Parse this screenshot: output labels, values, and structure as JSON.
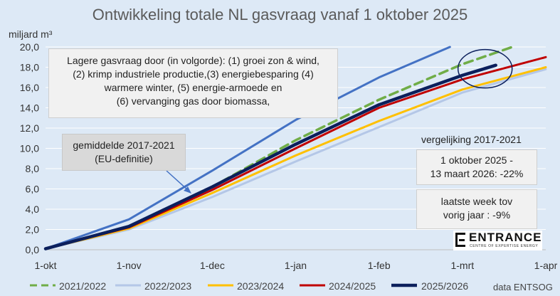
{
  "title": "Ontwikkeling totale NL gasvraag vanaf 1 oktober 2025",
  "source": "data ENTSOG",
  "annotations": {
    "causes": [
      "Lagere gasvraag door (in volgorde): (1) groei zon & wind,",
      "(2) krimp industriele productie,(3) energiebesparing (4)",
      "warmere winter, (5) energie-armoede en",
      "(6) vervanging gas door biomassa,"
    ],
    "average_label": [
      "gemiddelde 2017-2021",
      "(EU-definitie)"
    ],
    "comparison_label": "vergelijking 2017-2021",
    "comparison_box": [
      "1 oktober 2025 -",
      "13 maart 2026: -22%"
    ],
    "week_box": [
      "laatste week tov",
      "vorig jaar : -9%"
    ]
  },
  "logo": {
    "name": "ENTRANCE",
    "sub": "CENTRE OF EXPERTISE ENERGY"
  },
  "colors": {
    "2021/2022": "#70ad47",
    "2022/2023": "#b4c7e7",
    "2023/2024": "#ffc000",
    "2024/2025": "#c00000",
    "2025/2026": "#0b1f5c",
    "average": "#4472c4"
  },
  "chart_data": {
    "type": "line",
    "ylabel": "miljard m³",
    "ylim": [
      0,
      20
    ],
    "yticks": [
      "0,0",
      "2,0",
      "4,0",
      "6,0",
      "8,0",
      "10,0",
      "12,0",
      "14,0",
      "16,0",
      "18,0",
      "20,0"
    ],
    "xticks": [
      "1-okt",
      "1-nov",
      "1-dec",
      "1-jan",
      "1-feb",
      "1-mrt",
      "1-apr"
    ],
    "x_unit": "maanden vanaf 1-okt",
    "series": [
      {
        "name": "2021/2022",
        "style": "dashed",
        "x": [
          0,
          1,
          2,
          3,
          4,
          5,
          5.6
        ],
        "y": [
          0.1,
          2.3,
          6.2,
          10.8,
          14.8,
          18.3,
          20.0
        ]
      },
      {
        "name": "2022/2023",
        "x": [
          0,
          1,
          2,
          3,
          4,
          5,
          6
        ],
        "y": [
          0.1,
          2.0,
          5.2,
          8.7,
          12.1,
          15.5,
          17.8
        ]
      },
      {
        "name": "2023/2024",
        "x": [
          0,
          1,
          2,
          3,
          4,
          5,
          6
        ],
        "y": [
          0.1,
          2.1,
          5.6,
          9.3,
          12.7,
          15.8,
          18.0
        ]
      },
      {
        "name": "2024/2025",
        "x": [
          0,
          1,
          2,
          3,
          4,
          5,
          6
        ],
        "y": [
          0.1,
          2.2,
          5.9,
          10.0,
          14.0,
          16.8,
          19.0
        ]
      },
      {
        "name": "2025/2026",
        "x": [
          0,
          1,
          2,
          3,
          4,
          5,
          5.4
        ],
        "y": [
          0.1,
          2.3,
          6.2,
          10.4,
          14.3,
          17.2,
          18.2
        ]
      },
      {
        "name": "gemiddelde 2017-2021",
        "style": "solid-blue",
        "x": [
          0,
          1,
          2,
          3,
          4,
          4.85
        ],
        "y": [
          0.1,
          3.0,
          7.8,
          12.8,
          17.0,
          20.0
        ]
      }
    ]
  },
  "legend": [
    "2021/2022",
    "2022/2023",
    "2023/2024",
    "2024/2025",
    "2025/2026"
  ]
}
